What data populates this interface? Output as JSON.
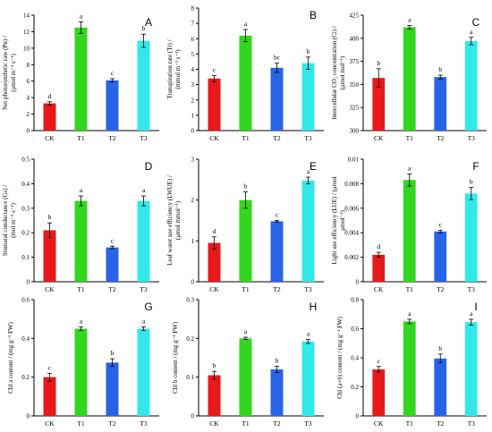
{
  "colors": [
    "#e8191a",
    "#33d61f",
    "#2a64e6",
    "#33e8ea"
  ],
  "chart_data": [
    {
      "letter": "A",
      "type": "bar",
      "ylabel": [
        "Net photosynthetic rate (Pn) /",
        "(μmol m⁻² s⁻¹)"
      ],
      "categories": [
        "CK",
        "T1",
        "T2",
        "T3"
      ],
      "values": [
        3.3,
        12.5,
        6.1,
        10.9
      ],
      "errors": [
        0.2,
        0.7,
        0.2,
        0.8
      ],
      "letters": [
        "d",
        "a",
        "c",
        "b"
      ],
      "ylim": [
        0,
        14
      ],
      "ticks": [
        "0",
        "2",
        "4",
        "6",
        "8",
        "10",
        "12",
        "14"
      ]
    },
    {
      "letter": "B",
      "type": "bar",
      "ylabel": [
        "Transpiration rate (Tr) /",
        "(mmol m⁻² s⁻¹)"
      ],
      "categories": [
        "CK",
        "T1",
        "T2",
        "T3"
      ],
      "values": [
        3.4,
        6.2,
        4.1,
        4.4
      ],
      "errors": [
        0.2,
        0.4,
        0.3,
        0.4
      ],
      "letters": [
        "c",
        "a",
        "bc",
        "b"
      ],
      "ylim": [
        0,
        8
      ],
      "ticks": [
        "0",
        "1",
        "2",
        "3",
        "4",
        "5",
        "6",
        "7",
        "8"
      ]
    },
    {
      "letter": "C",
      "type": "bar",
      "ylabel": [
        "Intercellular CO₂ concentration (Ci) /",
        "(μmol mol⁻¹)"
      ],
      "categories": [
        "CK",
        "T1",
        "T2",
        "T3"
      ],
      "values": [
        357,
        412,
        358,
        397
      ],
      "errors": [
        10,
        2,
        2,
        4
      ],
      "letters": [
        "b",
        "a",
        "b",
        "a"
      ],
      "ylim": [
        300,
        425
      ],
      "ticks": [
        "300",
        "325",
        "350",
        "375",
        "400",
        "425"
      ]
    },
    {
      "letter": "D",
      "type": "bar",
      "ylabel": [
        "Stomatal conductance (Gs) /",
        "(mol m⁻² s⁻¹)"
      ],
      "categories": [
        "CK",
        "T1",
        "T2",
        "T3"
      ],
      "values": [
        0.21,
        0.33,
        0.14,
        0.33
      ],
      "errors": [
        0.03,
        0.02,
        0.005,
        0.02
      ],
      "letters": [
        "b",
        "a",
        "c",
        "a"
      ],
      "ylim": [
        0,
        0.5
      ],
      "ticks": [
        "0",
        "0.1",
        "0.2",
        "0.3",
        "0.4",
        "0.5"
      ]
    },
    {
      "letter": "E",
      "type": "bar",
      "ylabel": [
        "Leaf water use efficiency (LWUE) /",
        "(μmol mmol⁻¹)"
      ],
      "categories": [
        "CK",
        "T1",
        "T2",
        "T3"
      ],
      "values": [
        0.95,
        2.0,
        1.48,
        2.48
      ],
      "errors": [
        0.15,
        0.2,
        0.02,
        0.08
      ],
      "letters": [
        "d",
        "b",
        "c",
        "a"
      ],
      "ylim": [
        0,
        3
      ],
      "ticks": [
        "0",
        "1",
        "2",
        "3"
      ]
    },
    {
      "letter": "F",
      "type": "bar",
      "ylabel": [
        "Light use efficiency (LUE) / (μmol",
        "μmol⁻¹)"
      ],
      "categories": [
        "CK",
        "T1",
        "T2",
        "T3"
      ],
      "values": [
        0.0022,
        0.0083,
        0.0041,
        0.0072
      ],
      "errors": [
        0.0002,
        0.0005,
        0.0001,
        0.0005
      ],
      "letters": [
        "d",
        "a",
        "c",
        "b"
      ],
      "ylim": [
        0,
        0.01
      ],
      "ticks": [
        "0",
        "0.002",
        "0.004",
        "0.006",
        "0.008",
        "0.01"
      ]
    },
    {
      "letter": "G",
      "type": "bar",
      "ylabel": [
        "Chl a content / (mg g⁻¹ FW)"
      ],
      "categories": [
        "CK",
        "T1",
        "T2",
        "T3"
      ],
      "values": [
        0.2,
        0.45,
        0.275,
        0.45
      ],
      "errors": [
        0.02,
        0.01,
        0.02,
        0.01
      ],
      "letters": [
        "c",
        "a",
        "b",
        "a"
      ],
      "ylim": [
        0,
        0.6
      ],
      "ticks": [
        "0",
        "0.2",
        "0.4",
        "0.6"
      ]
    },
    {
      "letter": "H",
      "type": "bar",
      "ylabel": [
        "Chl b content / (mg g⁻¹ FW)"
      ],
      "categories": [
        "CK",
        "T1",
        "T2",
        "T3"
      ],
      "values": [
        0.105,
        0.2,
        0.12,
        0.192
      ],
      "errors": [
        0.01,
        0.003,
        0.008,
        0.005
      ],
      "letters": [
        "b",
        "a",
        "b",
        "a"
      ],
      "ylim": [
        0,
        0.3
      ],
      "ticks": [
        "0",
        "0.1",
        "0.2",
        "0.3"
      ]
    },
    {
      "letter": "I",
      "type": "bar",
      "ylabel": [
        "Chl (a+b) content / (mg g⁻¹ FW)"
      ],
      "categories": [
        "CK",
        "T1",
        "T2",
        "T3"
      ],
      "values": [
        0.32,
        0.65,
        0.395,
        0.645
      ],
      "errors": [
        0.02,
        0.015,
        0.03,
        0.02
      ],
      "letters": [
        "c",
        "a",
        "b",
        "a"
      ],
      "ylim": [
        0,
        0.8
      ],
      "ticks": [
        "0",
        "0.2",
        "0.4",
        "0.6",
        "0.8"
      ]
    }
  ]
}
